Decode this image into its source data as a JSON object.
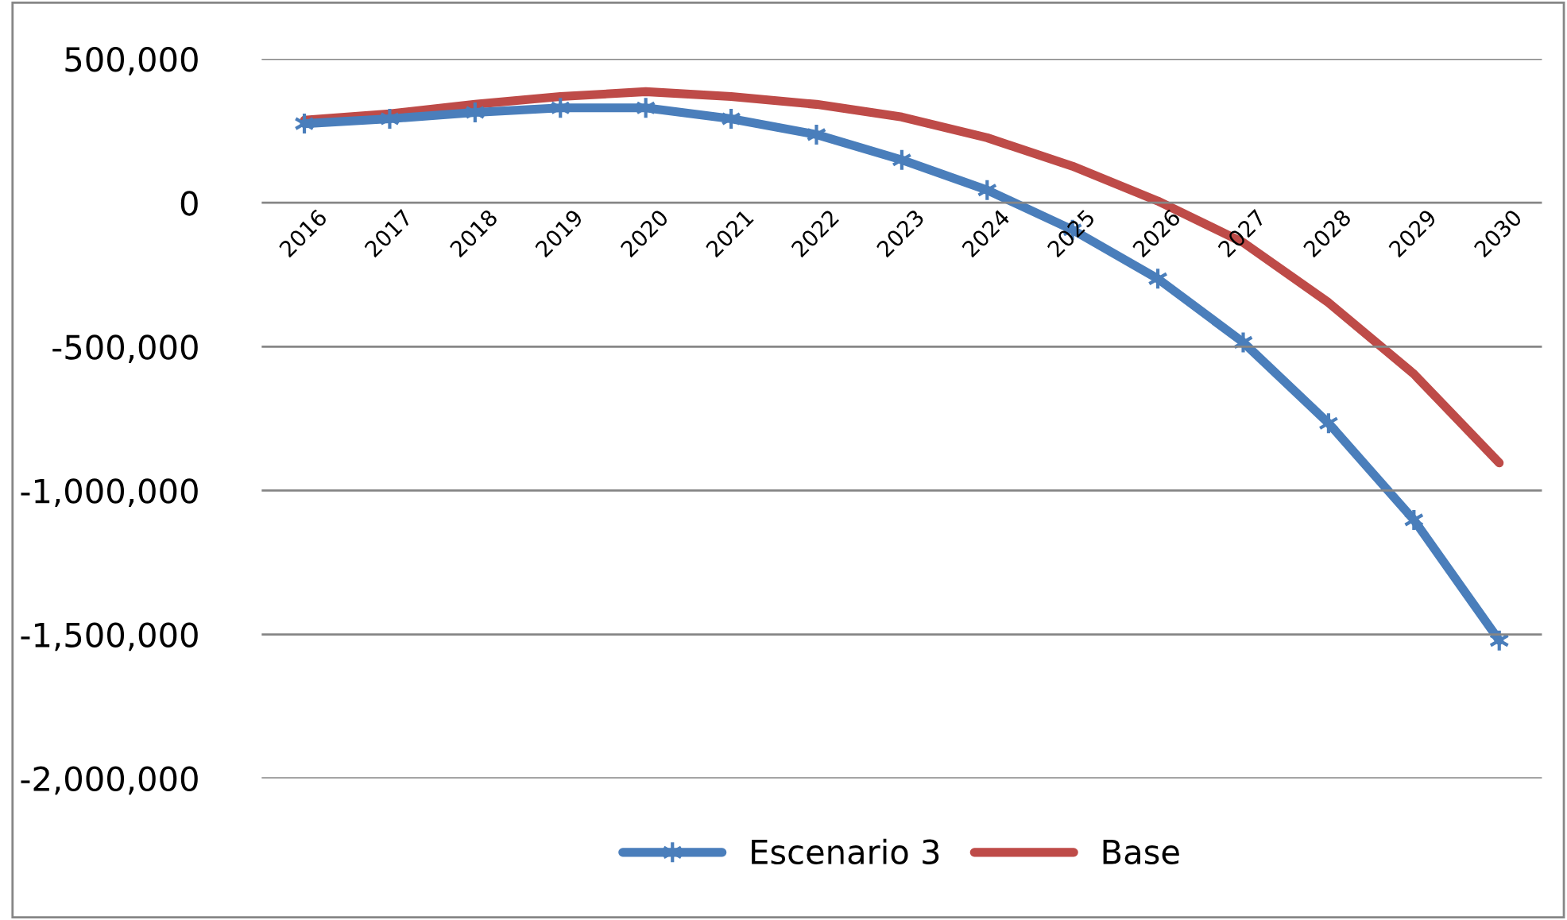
{
  "chart_data": {
    "type": "line",
    "categories": [
      "2016",
      "2017",
      "2018",
      "2019",
      "2020",
      "2021",
      "2022",
      "2023",
      "2024",
      "2025",
      "2026",
      "2027",
      "2028",
      "2029",
      "2030"
    ],
    "series": [
      {
        "name": "Escenario 3",
        "color": "#4a7ebb",
        "marker": "cross",
        "values": [
          275000,
          292000,
          314000,
          330000,
          330000,
          292000,
          237000,
          149000,
          44000,
          -94000,
          -264000,
          -485000,
          -766000,
          -1102000,
          -1521000
        ]
      },
      {
        "name": "Base",
        "color": "#be4b48",
        "marker": "none",
        "values": [
          287000,
          309000,
          342000,
          369000,
          386000,
          369000,
          342000,
          298000,
          226000,
          127000,
          6000,
          -138000,
          -347000,
          -595000,
          -904000
        ]
      }
    ],
    "ylim": [
      -2000000,
      500000
    ],
    "yticks": [
      {
        "value": -2000000,
        "label": "-2,000,000"
      },
      {
        "value": -1500000,
        "label": "-1,500,000"
      },
      {
        "value": -1000000,
        "label": "-1,000,000"
      },
      {
        "value": -500000,
        "label": "-500,000"
      },
      {
        "value": 0,
        "label": "0"
      },
      {
        "value": 500000,
        "label": "500,000"
      }
    ],
    "grid": "y",
    "legend": "bottom",
    "line_style": "solid"
  }
}
